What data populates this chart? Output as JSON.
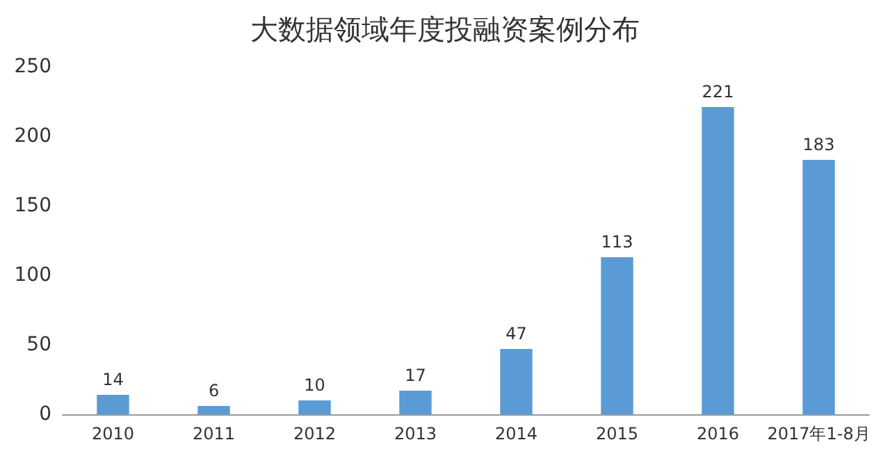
{
  "chart_data": {
    "type": "bar",
    "title": "大数据领域年度投融资案例分布",
    "categories": [
      "2010",
      "2011",
      "2012",
      "2013",
      "2014",
      "2015",
      "2016",
      "2017年1-8月"
    ],
    "values": [
      14,
      6,
      10,
      17,
      47,
      113,
      221,
      183
    ],
    "color": "#5b9bd5",
    "ylim": [
      0,
      250
    ],
    "yticks": [
      0,
      50,
      100,
      150,
      200,
      250
    ],
    "grid": false,
    "data_labels": true
  }
}
